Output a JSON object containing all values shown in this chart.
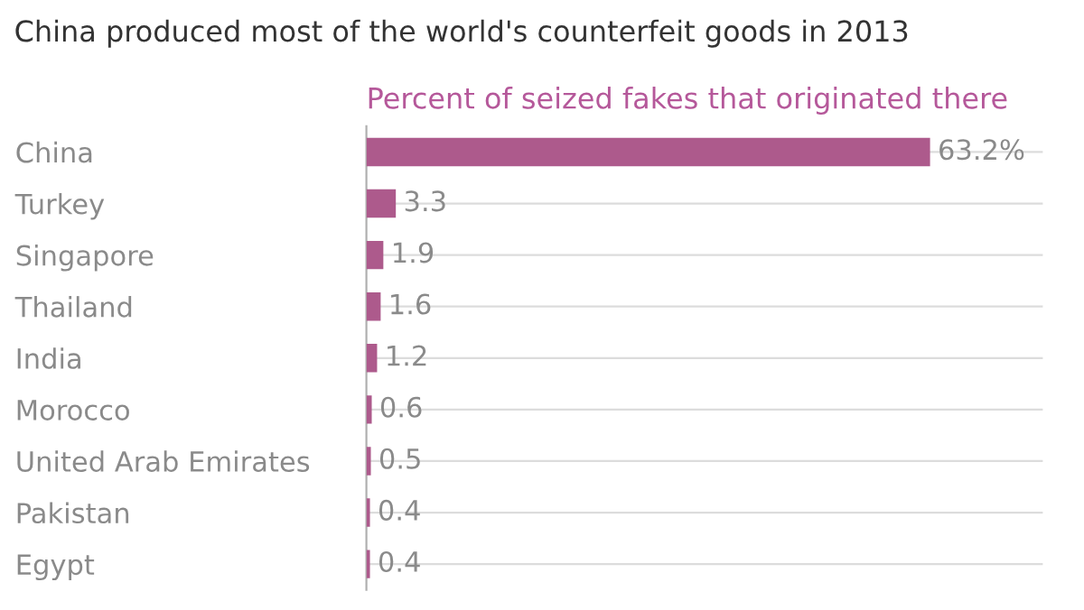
{
  "chart_data": {
    "type": "bar",
    "orientation": "horizontal",
    "title": "China produced most of the world's counterfeit goods in 2013",
    "subtitle": "Percent of seized fakes that originated there",
    "categories": [
      "China",
      "Turkey",
      "Singapore",
      "Thailand",
      "India",
      "Morocco",
      "United Arab Emirates",
      "Pakistan",
      "Egypt"
    ],
    "values": [
      63.2,
      3.3,
      1.9,
      1.6,
      1.2,
      0.6,
      0.5,
      0.4,
      0.4
    ],
    "value_labels": [
      "63.2%",
      "3.3",
      "1.9",
      "1.6",
      "1.2",
      "0.6",
      "0.5",
      "0.4",
      "0.4"
    ],
    "color": "#ad5a8c",
    "grid": "y",
    "tick_labels": "y"
  }
}
